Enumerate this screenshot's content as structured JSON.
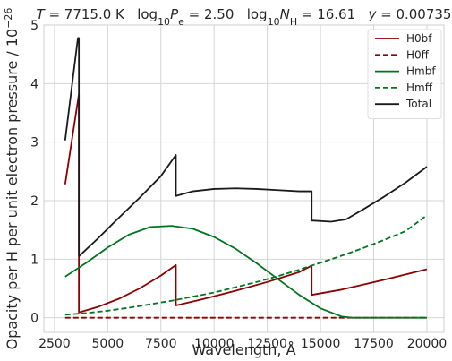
{
  "chart_data": {
    "type": "line",
    "title": {
      "parts": [
        {
          "text": "T",
          "italic": true
        },
        {
          "text": " = 7715.0 K"
        },
        {
          "text": "   log",
          "italic": false
        },
        {
          "text": "10",
          "sub": true
        },
        {
          "text": "P",
          "italic": true
        },
        {
          "text": "e",
          "sub": true
        },
        {
          "text": " = 2.50"
        },
        {
          "text": "   log"
        },
        {
          "text": "10",
          "sub": true
        },
        {
          "text": "N",
          "italic": true
        },
        {
          "text": "H",
          "sub": true
        },
        {
          "text": " = 16.61"
        },
        {
          "text": "   "
        },
        {
          "text": "y",
          "italic": true
        },
        {
          "text": " = 0.00735"
        }
      ]
    },
    "xlabel": "Wavelength, Å",
    "ylabel": {
      "text": "Opacity per H per unit electron pressure / 10",
      "sup": "−26"
    },
    "xlim": [
      2000,
      20800
    ],
    "ylim": [
      -0.25,
      5.0
    ],
    "xticks": [
      2500,
      5000,
      7500,
      10000,
      12500,
      15000,
      17500,
      20000
    ],
    "xtick_labels": [
      "2500",
      "5000",
      "7500",
      "10000",
      "12500",
      "15000",
      "17500",
      "20000"
    ],
    "yticks": [
      0,
      1,
      2,
      3,
      4,
      5
    ],
    "ytick_labels": [
      "0",
      "1",
      "2",
      "3",
      "4",
      "5"
    ],
    "grid": true,
    "legend_position": "top-right",
    "series": [
      {
        "name": "H0bf",
        "color": "#8b0000",
        "dash": "solid",
        "x": [
          3000,
          3646,
          3646,
          4500,
          5500,
          6500,
          7500,
          8204,
          8204,
          9500,
          11000,
          12500,
          14000,
          14585,
          14585,
          16000,
          18000,
          20000
        ],
        "y": [
          2.28,
          3.82,
          0.09,
          0.18,
          0.32,
          0.5,
          0.72,
          0.9,
          0.21,
          0.32,
          0.46,
          0.61,
          0.78,
          0.89,
          0.39,
          0.48,
          0.65,
          0.83
        ]
      },
      {
        "name": "H0ff",
        "color": "#8b0000",
        "dash": "dashed",
        "x": [
          3000,
          6000,
          9000,
          12000,
          15000,
          18000,
          20000
        ],
        "y": [
          0.0,
          0.0,
          0.0,
          0.0,
          0.0,
          0.0,
          0.0
        ]
      },
      {
        "name": "Hmbf",
        "color": "#00741f",
        "dash": "solid",
        "x": [
          3000,
          4000,
          5000,
          6000,
          7000,
          8000,
          9000,
          10000,
          11000,
          12000,
          13000,
          14000,
          15000,
          16000,
          16500,
          17500,
          20000
        ],
        "y": [
          0.7,
          0.94,
          1.2,
          1.42,
          1.55,
          1.57,
          1.52,
          1.38,
          1.18,
          0.93,
          0.66,
          0.39,
          0.16,
          0.02,
          0.0,
          0.0,
          0.0
        ]
      },
      {
        "name": "Hmff",
        "color": "#00741f",
        "dash": "dashed",
        "x": [
          3000,
          4000,
          5000,
          6000,
          7000,
          8000,
          9000,
          10000,
          11000,
          12000,
          13000,
          14000,
          15000,
          16000,
          17000,
          18000,
          19000,
          20000
        ],
        "y": [
          0.05,
          0.08,
          0.12,
          0.17,
          0.23,
          0.29,
          0.36,
          0.43,
          0.52,
          0.61,
          0.71,
          0.82,
          0.94,
          1.06,
          1.19,
          1.33,
          1.48,
          1.75
        ]
      },
      {
        "name": "Total",
        "color": "#1a1a1a",
        "dash": "solid",
        "x": [
          3000,
          3600,
          3646,
          3646,
          4500,
          5500,
          6500,
          7500,
          8204,
          8204,
          9000,
          10000,
          11000,
          12000,
          13000,
          14000,
          14585,
          14585,
          15500,
          16200,
          17000,
          18000,
          19000,
          20000
        ],
        "y": [
          3.03,
          4.78,
          4.78,
          1.05,
          1.34,
          1.7,
          2.05,
          2.42,
          2.78,
          2.08,
          2.16,
          2.2,
          2.21,
          2.2,
          2.18,
          2.16,
          2.16,
          1.66,
          1.64,
          1.68,
          1.85,
          2.07,
          2.31,
          2.58
        ]
      }
    ]
  }
}
